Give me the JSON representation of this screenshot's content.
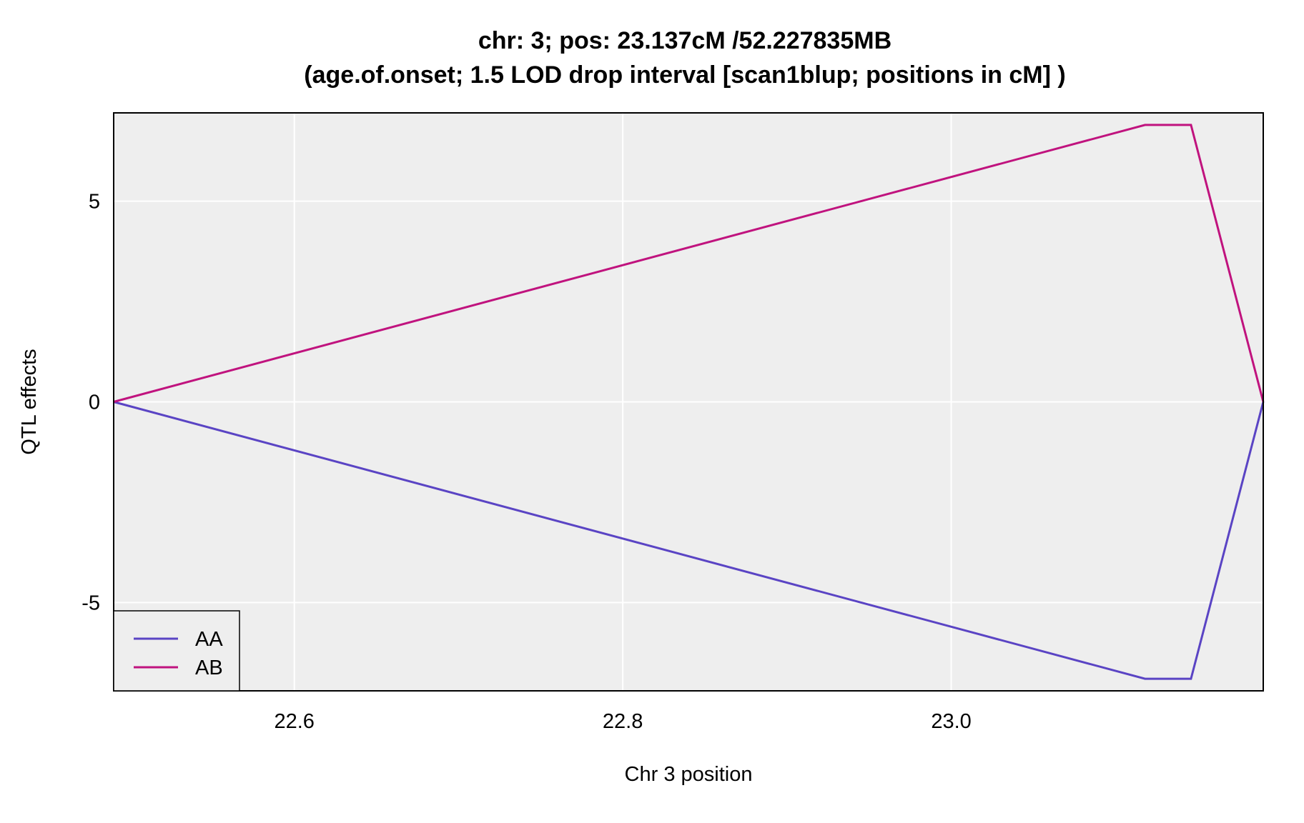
{
  "chart_data": {
    "type": "line",
    "title": "chr: 3; pos: 23.137cM /52.227835MB",
    "subtitle": "(age.of.onset; 1.5 LOD drop interval [scan1blup; positions in cM] )",
    "xlabel": "Chr 3 position",
    "ylabel": "QTL effects",
    "xlim": [
      22.49,
      23.19
    ],
    "ylim": [
      -7.2,
      7.2
    ],
    "x_ticks": [
      22.6,
      22.8,
      23.0
    ],
    "x_tick_labels": [
      "22.6",
      "22.8",
      "23.0"
    ],
    "y_ticks": [
      -5,
      0,
      5
    ],
    "y_tick_labels": [
      "-5",
      "0",
      "5"
    ],
    "grid": true,
    "legend_position": "bottom-left",
    "background_color": "#eeeeee",
    "gridline_color": "#ffffff",
    "series": [
      {
        "name": "AA",
        "color": "#5a44c4",
        "x": [
          22.49,
          23.118,
          23.146,
          23.19
        ],
        "y": [
          0,
          -6.9,
          -6.9,
          0
        ]
      },
      {
        "name": "AB",
        "color": "#c0137e",
        "x": [
          22.49,
          23.118,
          23.146,
          23.19
        ],
        "y": [
          0,
          6.9,
          6.9,
          0
        ]
      }
    ]
  }
}
